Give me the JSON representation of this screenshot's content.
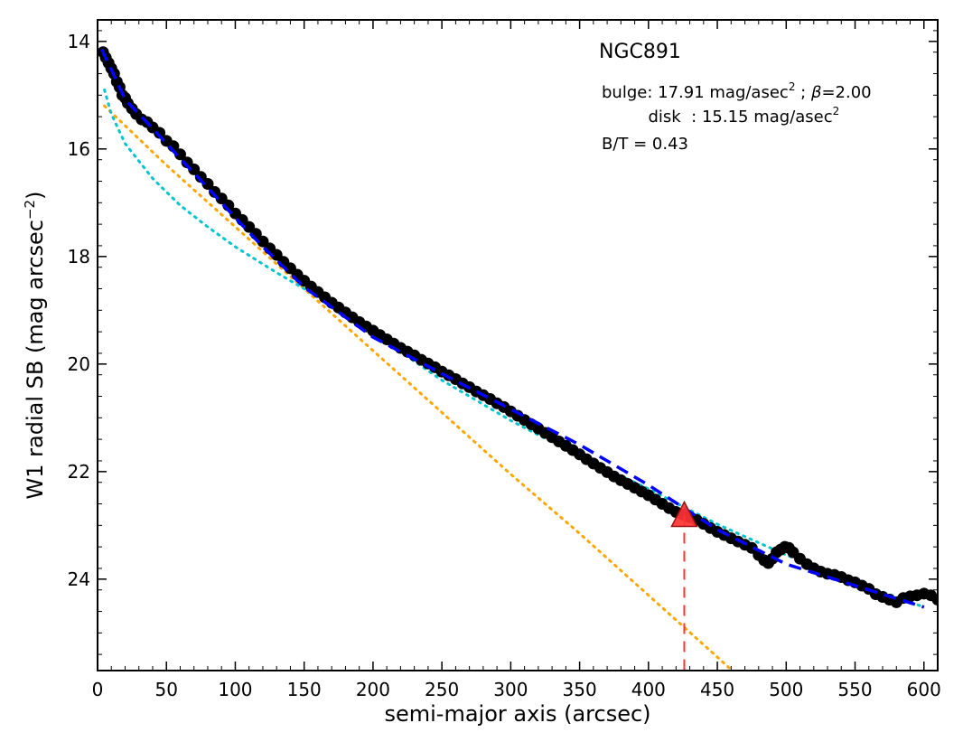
{
  "chart_data": {
    "type": "scatter",
    "xlabel": "semi-major axis (arcsec)",
    "ylabel": "W1 radial SB (mag arcsec",
    "ylabel_sup": "−2",
    "ylabel_suffix": ")",
    "xlim": [
      0,
      610
    ],
    "ylim": [
      25.7,
      13.6
    ],
    "y_inverted": true,
    "grid": false,
    "x_ticks": [
      0,
      50,
      100,
      150,
      200,
      250,
      300,
      350,
      400,
      450,
      500,
      550,
      600
    ],
    "y_ticks": [
      14,
      16,
      18,
      20,
      22,
      24
    ],
    "annotations": {
      "galaxy": "NGC891",
      "bulge_prefix": "bulge: 17.91 mag/asec",
      "bulge_sup": "2",
      "bulge_sep": " ; ",
      "beta_symbol": "β",
      "bulge_beta": "=2.00",
      "disk_prefix": "disk  : 15.15 mag/asec",
      "disk_sup": "2",
      "bt": "B/T = 0.43"
    },
    "colors": {
      "data_points": "#000000",
      "total_fit": "#0000ff",
      "bulge_fit": "#00c5cd",
      "disk_fit": "#ffa500",
      "marker": "#ff3333",
      "marker_line": "#ff3333"
    },
    "series": [
      {
        "kind": "points",
        "x": [
          4,
          6,
          8,
          10,
          12,
          14,
          16,
          18,
          20,
          22,
          25,
          28,
          32,
          36,
          40,
          45,
          50,
          55,
          60,
          65,
          70,
          75,
          80,
          85,
          90,
          95,
          100,
          105,
          110,
          115,
          120,
          125,
          130,
          135,
          140,
          145,
          150,
          155,
          160,
          165,
          170,
          175,
          180,
          185,
          190,
          195,
          200,
          205,
          210,
          215,
          220,
          225,
          230,
          235,
          240,
          245,
          250,
          255,
          260,
          265,
          270,
          275,
          280,
          285,
          290,
          295,
          300,
          305,
          310,
          315,
          320,
          325,
          330,
          335,
          340,
          345,
          350,
          355,
          360,
          365,
          370,
          375,
          380,
          385,
          390,
          395,
          400,
          405,
          410,
          415,
          420,
          425,
          430,
          435,
          440,
          445,
          450,
          455,
          460,
          465,
          470,
          475,
          480,
          484,
          487,
          490,
          493,
          496,
          499,
          502,
          505,
          510,
          515,
          520,
          525,
          530,
          535,
          540,
          545,
          550,
          555,
          560,
          565,
          570,
          575,
          580,
          585,
          590,
          595,
          600,
          605,
          610
        ],
        "y": [
          14.2,
          14.3,
          14.4,
          14.5,
          14.6,
          14.75,
          14.85,
          15.0,
          15.05,
          15.15,
          15.25,
          15.35,
          15.45,
          15.5,
          15.6,
          15.7,
          15.85,
          15.95,
          16.1,
          16.25,
          16.38,
          16.52,
          16.65,
          16.8,
          16.92,
          17.05,
          17.2,
          17.32,
          17.45,
          17.58,
          17.72,
          17.85,
          17.97,
          18.1,
          18.22,
          18.34,
          18.45,
          18.56,
          18.66,
          18.76,
          18.86,
          18.95,
          19.04,
          19.13,
          19.22,
          19.3,
          19.38,
          19.46,
          19.54,
          19.62,
          19.7,
          19.77,
          19.84,
          19.92,
          19.99,
          20.06,
          20.14,
          20.21,
          20.28,
          20.36,
          20.43,
          20.51,
          20.58,
          20.65,
          20.73,
          20.8,
          20.88,
          20.96,
          21.04,
          21.12,
          21.2,
          21.28,
          21.36,
          21.44,
          21.52,
          21.6,
          21.68,
          21.77,
          21.85,
          21.93,
          22.01,
          22.09,
          22.16,
          22.23,
          22.3,
          22.37,
          22.44,
          22.52,
          22.6,
          22.68,
          22.75,
          22.8,
          22.85,
          22.9,
          22.97,
          23.05,
          23.12,
          23.18,
          23.24,
          23.3,
          23.36,
          23.42,
          23.55,
          23.65,
          23.7,
          23.62,
          23.5,
          23.45,
          23.4,
          23.42,
          23.5,
          23.62,
          23.72,
          23.8,
          23.86,
          23.9,
          23.92,
          23.96,
          24.02,
          24.06,
          24.12,
          24.18,
          24.28,
          24.33,
          24.38,
          24.43,
          24.35,
          24.32,
          24.3,
          24.27,
          24.3,
          24.38
        ]
      },
      {
        "kind": "total_fit",
        "x": [
          3,
          10,
          20,
          40,
          60,
          80,
          100,
          120,
          150,
          200,
          250,
          300,
          350,
          400,
          450,
          500,
          550,
          600
        ],
        "y": [
          14.15,
          14.52,
          15.08,
          15.62,
          16.18,
          16.72,
          17.28,
          17.82,
          18.57,
          19.5,
          20.18,
          20.84,
          21.5,
          22.25,
          23.08,
          23.72,
          24.12,
          24.52
        ]
      },
      {
        "kind": "bulge_fit",
        "x": [
          5,
          10,
          20,
          40,
          60,
          80,
          100,
          130,
          160,
          200,
          250,
          300,
          350,
          400,
          450,
          500,
          550,
          600
        ],
        "y": [
          14.9,
          15.35,
          15.9,
          16.55,
          17.05,
          17.45,
          17.82,
          18.3,
          18.75,
          19.42,
          20.3,
          21.05,
          21.72,
          22.32,
          22.98,
          23.55,
          24.05,
          24.52
        ]
      },
      {
        "kind": "disk_fit",
        "x": [
          5,
          50,
          100,
          150,
          200,
          250,
          300,
          350,
          400,
          450,
          465
        ],
        "y": [
          15.2,
          16.3,
          17.45,
          18.6,
          19.75,
          20.9,
          22.05,
          23.15,
          24.3,
          25.45,
          25.8
        ]
      }
    ],
    "marker": {
      "x": 426,
      "y": 22.8
    }
  }
}
